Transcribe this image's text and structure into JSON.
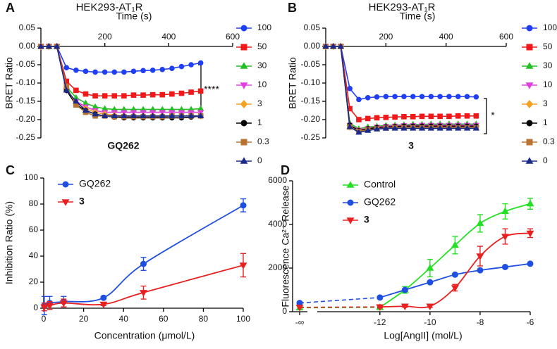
{
  "chart_data": [
    {
      "type": "line",
      "panel": "A",
      "title": "HEK293-AT₁R",
      "x_label": "Time (s)",
      "y_label": "BRET Ratio",
      "xlim": [
        0,
        600
      ],
      "xticks": [
        200,
        400,
        600
      ],
      "ylim": [
        -0.25,
        0.05
      ],
      "yticks": [
        0.05,
        {
          "value": 0,
          "label": "0.00"
        },
        -0.05,
        {
          "value": -0.1,
          "label": "-0.10"
        },
        -0.15,
        {
          "value": -0.2,
          "label": "-0.20"
        },
        -0.25
      ],
      "annotations": [
        "****",
        "GQ262"
      ],
      "x": [
        0,
        25,
        50,
        80,
        110,
        140,
        170,
        200,
        230,
        260,
        290,
        320,
        350,
        380,
        410,
        440,
        470,
        500
      ],
      "series": [
        {
          "name": "100",
          "color": "#1f3ff5",
          "marker": "circle",
          "values": [
            0,
            0,
            0,
            -0.058,
            -0.065,
            -0.068,
            -0.07,
            -0.07,
            -0.07,
            -0.07,
            -0.068,
            -0.066,
            -0.065,
            -0.063,
            -0.06,
            -0.055,
            -0.05,
            -0.045
          ]
        },
        {
          "name": "50",
          "color": "#f01818",
          "marker": "square",
          "values": [
            0,
            0,
            0,
            -0.095,
            -0.12,
            -0.13,
            -0.135,
            -0.135,
            -0.135,
            -0.135,
            -0.133,
            -0.133,
            -0.132,
            -0.132,
            -0.13,
            -0.128,
            -0.125,
            -0.122
          ]
        },
        {
          "name": "30",
          "color": "#22c022",
          "marker": "triangle-up",
          "values": [
            0,
            0,
            0,
            -0.11,
            -0.14,
            -0.155,
            -0.165,
            -0.17,
            -0.172,
            -0.172,
            -0.172,
            -0.172,
            -0.172,
            -0.172,
            -0.172,
            -0.172,
            -0.172,
            -0.17
          ]
        },
        {
          "name": "10",
          "color": "#e040e0",
          "marker": "triangle-down",
          "values": [
            0,
            0,
            0,
            -0.12,
            -0.15,
            -0.165,
            -0.175,
            -0.18,
            -0.18,
            -0.18,
            -0.18,
            -0.18,
            -0.18,
            -0.18,
            -0.18,
            -0.18,
            -0.18,
            -0.18
          ]
        },
        {
          "name": "3",
          "color": "#f5a020",
          "marker": "diamond",
          "values": [
            0,
            0,
            0,
            -0.115,
            -0.155,
            -0.17,
            -0.18,
            -0.185,
            -0.188,
            -0.19,
            -0.19,
            -0.19,
            -0.19,
            -0.19,
            -0.19,
            -0.19,
            -0.19,
            -0.19
          ]
        },
        {
          "name": "1",
          "color": "#000000",
          "marker": "circle",
          "values": [
            0,
            0,
            0,
            -0.12,
            -0.16,
            -0.175,
            -0.185,
            -0.19,
            -0.193,
            -0.195,
            -0.195,
            -0.195,
            -0.195,
            -0.195,
            -0.195,
            -0.195,
            -0.193,
            -0.19
          ]
        },
        {
          "name": "0.3",
          "color": "#b87333",
          "marker": "square",
          "values": [
            0,
            0,
            0,
            -0.11,
            -0.16,
            -0.18,
            -0.19,
            -0.19,
            -0.192,
            -0.192,
            -0.192,
            -0.192,
            -0.192,
            -0.192,
            -0.19,
            -0.19,
            -0.19,
            -0.19
          ]
        },
        {
          "name": "0",
          "color": "#1a2a8a",
          "marker": "triangle-up",
          "values": [
            0,
            0,
            0,
            -0.12,
            -0.15,
            -0.175,
            -0.185,
            -0.19,
            -0.19,
            -0.19,
            -0.19,
            -0.19,
            -0.19,
            -0.19,
            -0.19,
            -0.19,
            -0.19,
            -0.19
          ]
        }
      ]
    },
    {
      "type": "line",
      "panel": "B",
      "title": "HEK293-AT₁R",
      "x_label": "Time (s)",
      "y_label": "BRET Ratio",
      "xlim": [
        0,
        600
      ],
      "xticks": [
        200,
        400,
        600
      ],
      "ylim": [
        -0.25,
        0.05
      ],
      "yticks": [
        0.05,
        {
          "value": 0,
          "label": "0.00"
        },
        -0.05,
        {
          "value": -0.1,
          "label": "-0.10"
        },
        -0.15,
        {
          "value": -0.2,
          "label": "-0.20"
        },
        -0.25
      ],
      "annotations": [
        "*",
        "3"
      ],
      "x": [
        0,
        25,
        50,
        80,
        110,
        140,
        170,
        200,
        230,
        260,
        290,
        320,
        350,
        380,
        410,
        440,
        470,
        500
      ],
      "series": [
        {
          "name": "100",
          "color": "#1f3ff5",
          "marker": "circle",
          "values": [
            0,
            0,
            0,
            -0.115,
            -0.145,
            -0.14,
            -0.138,
            -0.137,
            -0.137,
            -0.137,
            -0.137,
            -0.137,
            -0.137,
            -0.137,
            -0.137,
            -0.137,
            -0.137,
            -0.138
          ]
        },
        {
          "name": "50",
          "color": "#f01818",
          "marker": "square",
          "values": [
            0,
            0,
            0,
            -0.17,
            -0.2,
            -0.197,
            -0.195,
            -0.194,
            -0.193,
            -0.192,
            -0.192,
            -0.191,
            -0.191,
            -0.191,
            -0.191,
            -0.19,
            -0.19,
            -0.19
          ]
        },
        {
          "name": "30",
          "color": "#22c022",
          "marker": "triangle-up",
          "values": [
            0,
            0,
            0,
            -0.21,
            -0.225,
            -0.22,
            -0.218,
            -0.216,
            -0.215,
            -0.214,
            -0.213,
            -0.213,
            -0.212,
            -0.212,
            -0.212,
            -0.212,
            -0.212,
            -0.212
          ]
        },
        {
          "name": "10",
          "color": "#e040e0",
          "marker": "triangle-down",
          "values": [
            0,
            0,
            0,
            -0.215,
            -0.228,
            -0.224,
            -0.22,
            -0.218,
            -0.217,
            -0.216,
            -0.216,
            -0.215,
            -0.215,
            -0.215,
            -0.215,
            -0.215,
            -0.215,
            -0.215
          ]
        },
        {
          "name": "3",
          "color": "#f5a020",
          "marker": "diamond",
          "values": [
            0,
            0,
            0,
            -0.22,
            -0.23,
            -0.226,
            -0.222,
            -0.221,
            -0.22,
            -0.22,
            -0.22,
            -0.22,
            -0.22,
            -0.22,
            -0.22,
            -0.22,
            -0.22,
            -0.22
          ]
        },
        {
          "name": "1",
          "color": "#000000",
          "marker": "circle",
          "values": [
            0,
            0,
            0,
            -0.215,
            -0.23,
            -0.225,
            -0.222,
            -0.22,
            -0.219,
            -0.218,
            -0.218,
            -0.218,
            -0.218,
            -0.218,
            -0.218,
            -0.218,
            -0.218,
            -0.218
          ]
        },
        {
          "name": "0.3",
          "color": "#b87333",
          "marker": "square",
          "values": [
            0,
            0,
            0,
            -0.22,
            -0.232,
            -0.228,
            -0.225,
            -0.223,
            -0.222,
            -0.222,
            -0.222,
            -0.222,
            -0.222,
            -0.222,
            -0.222,
            -0.222,
            -0.222,
            -0.222
          ]
        },
        {
          "name": "0",
          "color": "#1a2a8a",
          "marker": "triangle-up",
          "values": [
            0,
            0,
            0,
            -0.22,
            -0.235,
            -0.23,
            -0.226,
            -0.224,
            -0.224,
            -0.224,
            -0.224,
            -0.224,
            -0.224,
            -0.224,
            -0.224,
            -0.224,
            -0.224,
            -0.224
          ]
        }
      ]
    },
    {
      "type": "scatter",
      "panel": "C",
      "x_label": "Concentration (μmol/L)",
      "y_label": "Inhibition Ratio (%)",
      "xlim": [
        0,
        100
      ],
      "xticks": [
        0,
        20,
        40,
        60,
        80,
        100
      ],
      "ylim": [
        0,
        100
      ],
      "yticks": [
        0,
        20,
        40,
        60,
        80,
        100
      ],
      "x": [
        0.3,
        3,
        10,
        30,
        50,
        100
      ],
      "series": [
        {
          "name": "GQ262",
          "color": "#1f4fe0",
          "marker": "circle",
          "values": [
            2,
            4,
            5,
            8,
            34,
            79
          ],
          "errors": [
            7,
            5,
            4,
            1,
            5,
            5
          ]
        },
        {
          "name": "3",
          "color": "#e82020",
          "marker": "triangle-down",
          "values": [
            1,
            2,
            4,
            3,
            12,
            33
          ],
          "errors": [
            3,
            3,
            3,
            1,
            5,
            9
          ]
        }
      ]
    },
    {
      "type": "scatter",
      "panel": "D",
      "x_label": "Log[AngII] (mol/L)",
      "y_label": "Fluorescence Ca²⁺ Release",
      "xlim": [
        -14.5,
        -6
      ],
      "xticks": [
        -12,
        -10,
        -8,
        -6
      ],
      "x_break_label": "-∞",
      "ylim": [
        0,
        6000
      ],
      "yticks": [
        0,
        2000,
        4000,
        6000
      ],
      "x": [
        -12,
        -11,
        -10,
        -9,
        -8,
        -7,
        -6
      ],
      "series": [
        {
          "name": "Control",
          "color": "#22e022",
          "marker": "triangle-up",
          "baseline": 180,
          "values": [
            200,
            1000,
            2000,
            3050,
            4050,
            4600,
            4950
          ],
          "errors": [
            100,
            150,
            400,
            400,
            400,
            350,
            250
          ]
        },
        {
          "name": "GQ262",
          "color": "#1f4fe0",
          "marker": "circle",
          "baseline": 400,
          "values": [
            650,
            1000,
            1350,
            1700,
            1900,
            2050,
            2200
          ],
          "errors": [
            50,
            50,
            50,
            50,
            50,
            50,
            50
          ]
        },
        {
          "name": "3",
          "color": "#e82020",
          "marker": "triangle-down",
          "baseline": 200,
          "values": [
            220,
            250,
            250,
            1100,
            2550,
            3450,
            3600
          ],
          "errors": [
            50,
            50,
            50,
            150,
            450,
            350,
            200
          ]
        }
      ]
    }
  ]
}
